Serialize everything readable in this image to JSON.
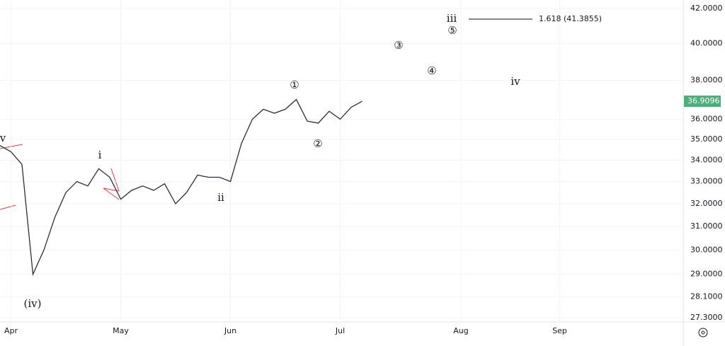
{
  "chart_data": {
    "type": "line",
    "categories": [
      null,
      "Apr",
      null,
      null,
      null,
      null,
      null,
      null,
      null,
      null,
      null,
      "May",
      null,
      null,
      null,
      null,
      null,
      null,
      null,
      null,
      null,
      "Jun",
      null,
      null,
      null,
      null,
      null,
      null,
      null,
      null,
      null,
      "Jul",
      null,
      null,
      null,
      null,
      null,
      null,
      null,
      null,
      null,
      null,
      "Aug",
      null,
      null,
      null,
      null,
      null,
      null,
      null,
      null,
      "Sep",
      null,
      null,
      null,
      null,
      null,
      null,
      null,
      null,
      null,
      null
    ],
    "series": [
      {
        "color": "#2a2e39",
        "values": [
          34.7,
          34.4,
          33.8,
          29.0,
          30.0,
          31.4,
          32.5,
          33.0,
          32.8,
          33.6,
          33.2,
          32.2,
          32.6,
          32.8,
          32.6,
          32.9,
          32.0,
          32.5,
          33.3,
          33.2,
          33.2,
          33.0,
          34.8,
          36.0,
          36.5,
          36.3,
          36.5,
          37.0,
          35.9,
          35.8,
          36.4,
          36.0,
          36.6,
          36.9096,
          null,
          null,
          null,
          null,
          null,
          null,
          null,
          null,
          null,
          null,
          null,
          null,
          null,
          null,
          null,
          null,
          null,
          null,
          null,
          null,
          null,
          null,
          null,
          null,
          null,
          null,
          null,
          null
        ]
      }
    ],
    "ylim": [
      27.3,
      42.0
    ],
    "log_scale": true,
    "grid": true,
    "yticks": [
      {
        "value": 42.0,
        "label": "42.0000"
      },
      {
        "value": 40.0,
        "label": "40.0000"
      },
      {
        "value": 38.0,
        "label": "38.0000"
      },
      {
        "value": 36.0,
        "label": "36.0000"
      },
      {
        "value": 35.0,
        "label": "35.0000"
      },
      {
        "value": 34.0,
        "label": "34.0000"
      },
      {
        "value": 33.0,
        "label": "33.0000"
      },
      {
        "value": 32.0,
        "label": "32.0000"
      },
      {
        "value": 31.0,
        "label": "31.0000"
      },
      {
        "value": 30.0,
        "label": "30.0000"
      },
      {
        "value": 29.0,
        "label": "29.0000"
      },
      {
        "value": 28.1,
        "label": "28.1000"
      },
      {
        "value": 27.3,
        "label": "27.3000"
      }
    ],
    "price_badge_color": "#4caf7a",
    "annotations": [
      "v",
      "i",
      "(iv)",
      "ii",
      "①",
      "②",
      "③",
      "④",
      "⑤",
      "iii",
      "iv",
      "1.618 (41.3855)"
    ]
  }
}
